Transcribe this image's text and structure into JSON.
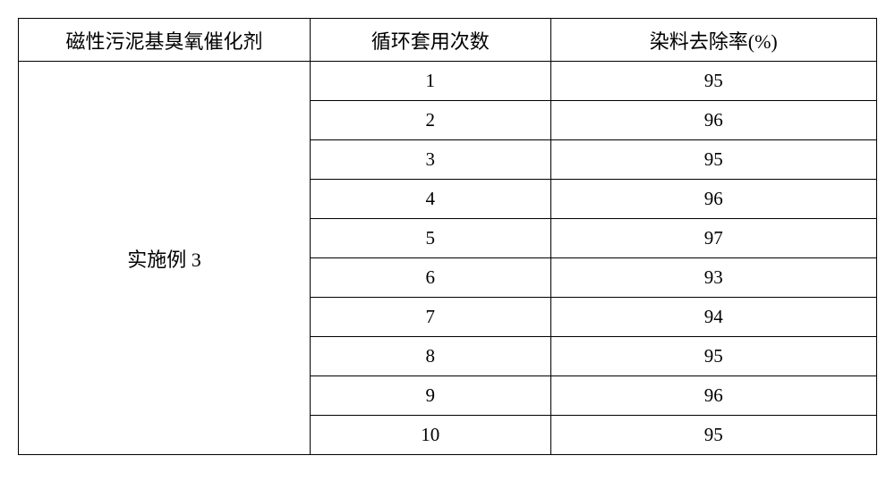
{
  "table": {
    "headers": {
      "col1": "磁性污泥基臭氧催化剂",
      "col2": "循环套用次数",
      "col3": "染料去除率(%)"
    },
    "merged_label": "实施例 3",
    "rows": [
      {
        "cycle": "1",
        "removal": "95"
      },
      {
        "cycle": "2",
        "removal": "96"
      },
      {
        "cycle": "3",
        "removal": "95"
      },
      {
        "cycle": "4",
        "removal": "96"
      },
      {
        "cycle": "5",
        "removal": "97"
      },
      {
        "cycle": "6",
        "removal": "93"
      },
      {
        "cycle": "7",
        "removal": "94"
      },
      {
        "cycle": "8",
        "removal": "95"
      },
      {
        "cycle": "9",
        "removal": "96"
      },
      {
        "cycle": "10",
        "removal": "95"
      }
    ],
    "styling": {
      "border_color": "#000000",
      "border_width": 1.5,
      "background_color": "#ffffff",
      "text_color": "#000000",
      "header_fontsize": 22,
      "cell_fontsize": 21,
      "font_family": "SimSun",
      "col_widths_pct": [
        34,
        28,
        38
      ],
      "header_row_height": 48,
      "data_row_height": 44,
      "text_align": "center"
    }
  }
}
